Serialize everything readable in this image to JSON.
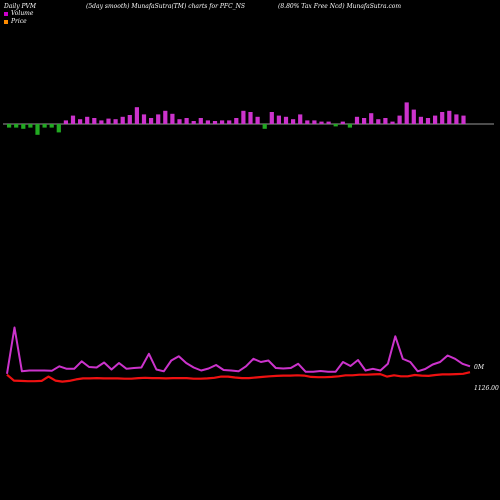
{
  "header": {
    "left": "Daily PVM",
    "center": "(5day smooth) MunafaSutra(TM) charts for PFC_NS",
    "right": "(8.80% Tax Free   Ncd) MunafaSutra.com"
  },
  "legend": {
    "volume_label": "Volume",
    "price_label": "Price",
    "volume_color": "#cc00cc",
    "price_color": "#ff8c00"
  },
  "colors": {
    "background": "#000000",
    "zero_line": "#cccccc",
    "vol_up": "#cc33cc",
    "vol_down": "#22aa22",
    "vol_line": "#cc33cc",
    "price_line": "#ee1111"
  },
  "chart_data": {
    "type": "bar+line",
    "volume_bars": {
      "values": [
        -0.6,
        -0.6,
        -0.8,
        -0.6,
        -1.8,
        -0.6,
        -0.6,
        -1.4,
        0.6,
        1.4,
        0.8,
        1.2,
        1.0,
        0.6,
        0.9,
        0.8,
        1.2,
        1.5,
        2.8,
        1.6,
        1.0,
        1.6,
        2.2,
        1.7,
        0.8,
        1.0,
        0.5,
        1.0,
        0.6,
        0.5,
        0.6,
        0.6,
        1.0,
        2.2,
        2.0,
        1.2,
        -0.8,
        2.0,
        1.4,
        1.2,
        0.8,
        1.6,
        0.6,
        0.6,
        0.4,
        0.4,
        -0.4,
        0.4,
        -0.6,
        1.2,
        1.0,
        1.8,
        0.8,
        1.0,
        0.4,
        1.4,
        3.6,
        2.4,
        1.2,
        1.0,
        1.4,
        2.0,
        2.2,
        1.6,
        1.4
      ],
      "directions": [
        "down",
        "down",
        "down",
        "down",
        "down",
        "down",
        "down",
        "down",
        "up",
        "up",
        "up",
        "up",
        "up",
        "up",
        "up",
        "up",
        "up",
        "up",
        "up",
        "up",
        "up",
        "up",
        "up",
        "up",
        "up",
        "up",
        "up",
        "up",
        "up",
        "up",
        "up",
        "up",
        "up",
        "up",
        "up",
        "up",
        "down",
        "up",
        "up",
        "up",
        "up",
        "up",
        "up",
        "up",
        "up",
        "up",
        "down",
        "up",
        "down",
        "up",
        "up",
        "up",
        "up",
        "up",
        "up",
        "up",
        "up",
        "up",
        "up",
        "up",
        "up",
        "up",
        "up",
        "up",
        "up"
      ]
    },
    "volume_line": {
      "values": [
        0.25,
        2.1,
        0.35,
        0.38,
        0.38,
        0.38,
        0.37,
        0.55,
        0.45,
        0.45,
        0.75,
        0.52,
        0.5,
        0.7,
        0.42,
        0.68,
        0.45,
        0.48,
        0.5,
        1.05,
        0.42,
        0.35,
        0.78,
        0.95,
        0.68,
        0.5,
        0.38,
        0.46,
        0.6,
        0.4,
        0.38,
        0.35,
        0.55,
        0.85,
        0.72,
        0.78,
        0.48,
        0.46,
        0.48,
        0.65,
        0.33,
        0.33,
        0.36,
        0.33,
        0.33,
        0.72,
        0.56,
        0.8,
        0.38,
        0.45,
        0.38,
        0.65,
        1.75,
        0.85,
        0.72,
        0.35,
        0.44,
        0.62,
        0.72,
        0.98,
        0.85,
        0.65,
        0.55
      ],
      "label": "0M"
    },
    "price_line": {
      "values": [
        1126.5,
        1124.6,
        1124.5,
        1124.4,
        1124.4,
        1124.5,
        1125.9,
        1124.6,
        1124.3,
        1124.5,
        1125.0,
        1125.3,
        1125.3,
        1125.4,
        1125.3,
        1125.3,
        1125.3,
        1125.2,
        1125.2,
        1125.4,
        1125.5,
        1125.4,
        1125.4,
        1125.3,
        1125.4,
        1125.4,
        1125.4,
        1125.2,
        1125.2,
        1125.3,
        1125.5,
        1125.9,
        1125.9,
        1125.6,
        1125.4,
        1125.4,
        1125.6,
        1125.8,
        1126.0,
        1126.1,
        1126.2,
        1126.2,
        1126.3,
        1126.2,
        1125.8,
        1125.7,
        1125.7,
        1125.8,
        1126.0,
        1126.3,
        1126.3,
        1126.5,
        1126.5,
        1126.6,
        1126.7,
        1125.9,
        1126.3,
        1126.0,
        1126.0,
        1126.4,
        1126.2,
        1126.1,
        1126.4,
        1126.6,
        1126.6,
        1126.7,
        1126.8,
        1127.3
      ],
      "label": "1126.00"
    },
    "volume_axis_range": [
      -2,
      4
    ],
    "volume_line_range": [
      0,
      2.4
    ],
    "price_range": [
      1120,
      1128
    ]
  }
}
